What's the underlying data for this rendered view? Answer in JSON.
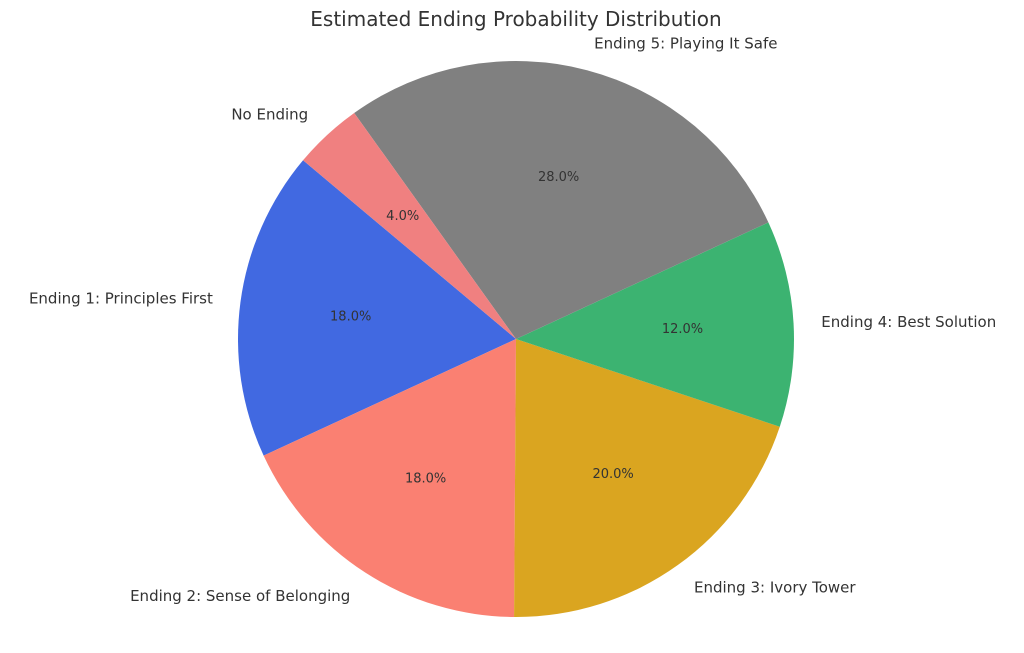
{
  "chart_data": {
    "type": "pie",
    "title": "Estimated Ending Probability Distribution",
    "categories": [
      "Ending 1: Principles First",
      "Ending 2: Sense of Belonging",
      "Ending 3: Ivory Tower",
      "Ending 4: Best Solution",
      "Ending 5: Playing It Safe",
      "No Ending"
    ],
    "values": [
      18.0,
      18.0,
      20.0,
      12.0,
      28.0,
      4.0
    ],
    "value_labels": [
      "18.0%",
      "18.0%",
      "20.0%",
      "12.0%",
      "28.0%",
      "4.0%"
    ],
    "colors": [
      "#4169e1",
      "#fa8072",
      "#daa520",
      "#3cb371",
      "#808080",
      "#f08080"
    ],
    "start_angle_deg": 140,
    "direction": "counterclockwise"
  }
}
